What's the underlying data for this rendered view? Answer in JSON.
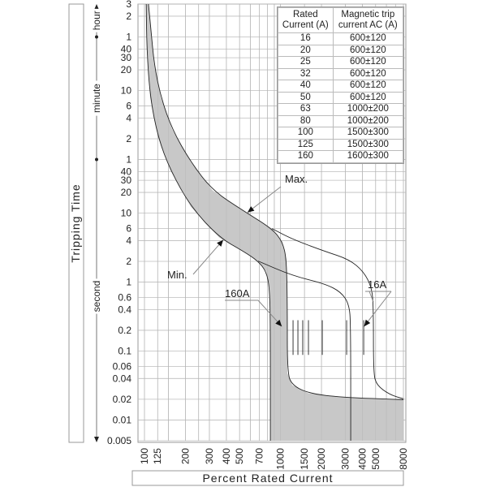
{
  "chart_data": {
    "type": "line",
    "title": "",
    "xlabel": "Percent Rated Current",
    "ylabel": "Tripping Time",
    "xscale": "log",
    "yscale": "log",
    "xlim": [
      100,
      8000
    ],
    "ylim_seconds": [
      0.005,
      10800
    ],
    "grid": true,
    "x_ticks": [
      {
        "value": 100,
        "label": "100"
      },
      {
        "value": 125,
        "label": "125"
      },
      {
        "value": 200,
        "label": "200"
      },
      {
        "value": 300,
        "label": "300"
      },
      {
        "value": 400,
        "label": "400"
      },
      {
        "value": 500,
        "label": "500"
      },
      {
        "value": 700,
        "label": "700"
      },
      {
        "value": 1000,
        "label": "1000"
      },
      {
        "value": 1500,
        "label": "1500"
      },
      {
        "value": 2000,
        "label": "2000"
      },
      {
        "value": 3000,
        "label": "3000"
      },
      {
        "value": 4000,
        "label": "4000"
      },
      {
        "value": 5000,
        "label": "5000"
      },
      {
        "value": 8000,
        "label": "8000"
      }
    ],
    "x_grid": [
      100,
      125,
      150,
      200,
      250,
      300,
      400,
      500,
      600,
      700,
      800,
      900,
      1000,
      1500,
      2000,
      3000,
      4000,
      5000,
      6000,
      7000,
      8000
    ],
    "y_ticks": [
      {
        "seconds": 10800,
        "label": "3"
      },
      {
        "seconds": 7200,
        "label": "2"
      },
      {
        "seconds": 3600,
        "label": "1"
      },
      {
        "seconds": 2400,
        "label": "40"
      },
      {
        "seconds": 1800,
        "label": "30"
      },
      {
        "seconds": 1200,
        "label": "20"
      },
      {
        "seconds": 600,
        "label": "10"
      },
      {
        "seconds": 360,
        "label": "6"
      },
      {
        "seconds": 240,
        "label": "4"
      },
      {
        "seconds": 120,
        "label": "2"
      },
      {
        "seconds": 60,
        "label": "1"
      },
      {
        "seconds": 40,
        "label": "40"
      },
      {
        "seconds": 30,
        "label": "30"
      },
      {
        "seconds": 20,
        "label": "20"
      },
      {
        "seconds": 10,
        "label": "10"
      },
      {
        "seconds": 6,
        "label": "6"
      },
      {
        "seconds": 4,
        "label": "4"
      },
      {
        "seconds": 2,
        "label": "2"
      },
      {
        "seconds": 1,
        "label": "1"
      },
      {
        "seconds": 0.6,
        "label": "0.6"
      },
      {
        "seconds": 0.4,
        "label": "0.4"
      },
      {
        "seconds": 0.2,
        "label": "0.2"
      },
      {
        "seconds": 0.1,
        "label": "0.1"
      },
      {
        "seconds": 0.06,
        "label": "0.06"
      },
      {
        "seconds": 0.04,
        "label": "0.04"
      },
      {
        "seconds": 0.02,
        "label": "0.02"
      },
      {
        "seconds": 0.01,
        "label": "0.01"
      },
      {
        "seconds": 0.005,
        "label": "0.005"
      }
    ],
    "time_units": [
      {
        "label": "hour",
        "from": 3600,
        "to": 10800
      },
      {
        "label": "minute",
        "from": 60,
        "to": 3600
      },
      {
        "label": "second",
        "from": 0.005,
        "to": 60
      }
    ],
    "series": [
      {
        "name": "Max.",
        "points": [
          [
            107,
            10800
          ],
          [
            112,
            4200
          ],
          [
            118,
            1420
          ],
          [
            132,
            481
          ],
          [
            160,
            163
          ],
          [
            219,
            55
          ],
          [
            317,
            21.3
          ],
          [
            534,
            10.8
          ],
          [
            865,
            5.98
          ],
          [
            1033,
            3.87
          ],
          [
            1107,
            2.14
          ],
          [
            1122,
            0.42
          ],
          [
            1122,
            0.048
          ],
          [
            1219,
            0.032
          ],
          [
            1604,
            0.0244
          ],
          [
            2779,
            0.0213
          ],
          [
            8000,
            0.0197
          ]
        ]
      },
      {
        "name": "Min.",
        "points": [
          [
            103,
            10800
          ],
          [
            104,
            2445
          ],
          [
            110,
            481
          ],
          [
            126,
            124
          ],
          [
            155,
            42
          ],
          [
            219,
            12.4
          ],
          [
            354,
            4.44
          ],
          [
            534,
            2.8
          ],
          [
            684,
            2.02
          ],
          [
            786,
            1.42
          ],
          [
            830,
            0.83
          ],
          [
            842,
            0.245
          ],
          [
            842,
            0.005
          ]
        ]
      },
      {
        "name": "16A max",
        "points": [
          [
            865,
            5.98
          ],
          [
            1219,
            4.2
          ],
          [
            2113,
            2.8
          ],
          [
            3190,
            2.14
          ],
          [
            4085,
            1.42
          ],
          [
            4690,
            0.83
          ],
          [
            4818,
            0.42
          ],
          [
            4818,
            0.048
          ],
          [
            5085,
            0.032
          ],
          [
            6340,
            0.0233
          ],
          [
            8000,
            0.0203
          ]
        ]
      },
      {
        "name": "16A min",
        "points": [
          [
            684,
            2.02
          ],
          [
            1219,
            1.24
          ],
          [
            2113,
            0.95
          ],
          [
            2779,
            0.72
          ],
          [
            3190,
            0.48
          ],
          [
            3280,
            0.245
          ],
          [
            3280,
            0.005
          ]
        ]
      }
    ],
    "trip_markers_percent": [
      1236,
      1342,
      1456,
      1604,
      2027,
      3061,
      4085
    ],
    "trip_marker_range_seconds": [
      0.088,
      0.28
    ],
    "annotations": [
      {
        "text": "Max.",
        "target": [
          534,
          10.8
        ]
      },
      {
        "text": "Min.",
        "target": [
          354,
          4.44
        ]
      },
      {
        "text": "160A",
        "target": [
          1080,
          0.24
        ]
      },
      {
        "text": "16A",
        "target": [
          4000,
          0.24
        ]
      }
    ],
    "table": {
      "headers": [
        "Rated Current (A)",
        "Magnetic trip current AC (A)"
      ],
      "header_lines": [
        [
          "Rated",
          "Current (A)"
        ],
        [
          "Magnetic trip",
          "current AC (A)"
        ]
      ],
      "rows": [
        [
          "16",
          "600±120"
        ],
        [
          "20",
          "600±120"
        ],
        [
          "25",
          "600±120"
        ],
        [
          "32",
          "600±120"
        ],
        [
          "40",
          "600±120"
        ],
        [
          "50",
          "600±120"
        ],
        [
          "63",
          "1000±200"
        ],
        [
          "80",
          "1000±200"
        ],
        [
          "100",
          "1500±300"
        ],
        [
          "125",
          "1500±300"
        ],
        [
          "160",
          "1600±300"
        ]
      ]
    },
    "colors": {
      "band": "#c8c8c8",
      "grid": "#bdbdbd",
      "curve": "#222222",
      "annotation": "#888888"
    }
  }
}
